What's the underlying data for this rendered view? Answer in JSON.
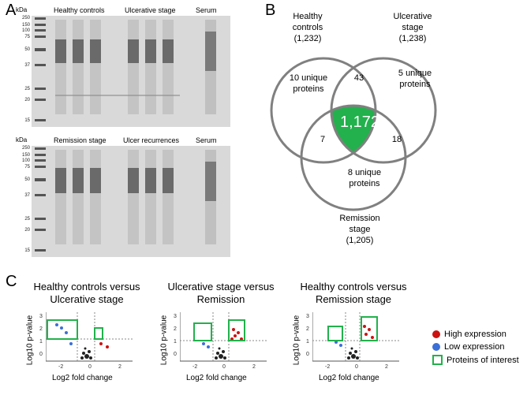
{
  "panel_a": {
    "letter": "A",
    "gel_top": {
      "kda": "kDa",
      "mw_markers": [
        "250",
        "150",
        "100",
        "75",
        "50",
        "37",
        "25",
        "20",
        "15"
      ],
      "labels": [
        "Healthy controls",
        "Ulcerative stage",
        "Serum"
      ]
    },
    "gel_bottom": {
      "kda": "kDa",
      "mw_markers": [
        "250",
        "150",
        "100",
        "75",
        "50",
        "37",
        "25",
        "20",
        "15"
      ],
      "labels": [
        "Remission stage",
        "Ulcer recurrences",
        "Serum"
      ]
    }
  },
  "panel_b": {
    "letter": "B",
    "sets": [
      {
        "name": "Healthy controls",
        "count": "(1,232)"
      },
      {
        "name": "Ulcerative stage",
        "count": "(1,238)"
      },
      {
        "name": "Remission stage",
        "count": "(1,205)"
      }
    ],
    "regions": {
      "healthy_unique": "10 unique proteins",
      "ulcerative_unique": "5 unique proteins",
      "remission_unique": "8 unique proteins",
      "healthy_ulcerative": "43",
      "healthy_remission": "7",
      "ulcerative_remission": "18",
      "all_three": "1,172"
    },
    "colors": {
      "center": "#22b14c",
      "circle": "#808080"
    }
  },
  "panel_c": {
    "letter": "C",
    "plots": [
      {
        "title_line1": "Healthy controls versus",
        "title_line2": "Ulcerative stage"
      },
      {
        "title_line1": "Ulcerative stage versus",
        "title_line2": "Remission"
      },
      {
        "title_line1": "Healthy controls versus",
        "title_line2": "Remission stage"
      }
    ],
    "ylabel": "Log10 p-value",
    "xlabel": "Log2 fold change",
    "yticks": [
      "3",
      "2",
      "1",
      "0"
    ],
    "xticks": [
      "-2",
      "0",
      "2"
    ],
    "legend": [
      {
        "label": "High expression",
        "color": "#cc1111"
      },
      {
        "label": "Low expression",
        "color": "#3a6fd8"
      },
      {
        "label": "Proteins of interest",
        "color": "#22b14c"
      }
    ]
  }
}
